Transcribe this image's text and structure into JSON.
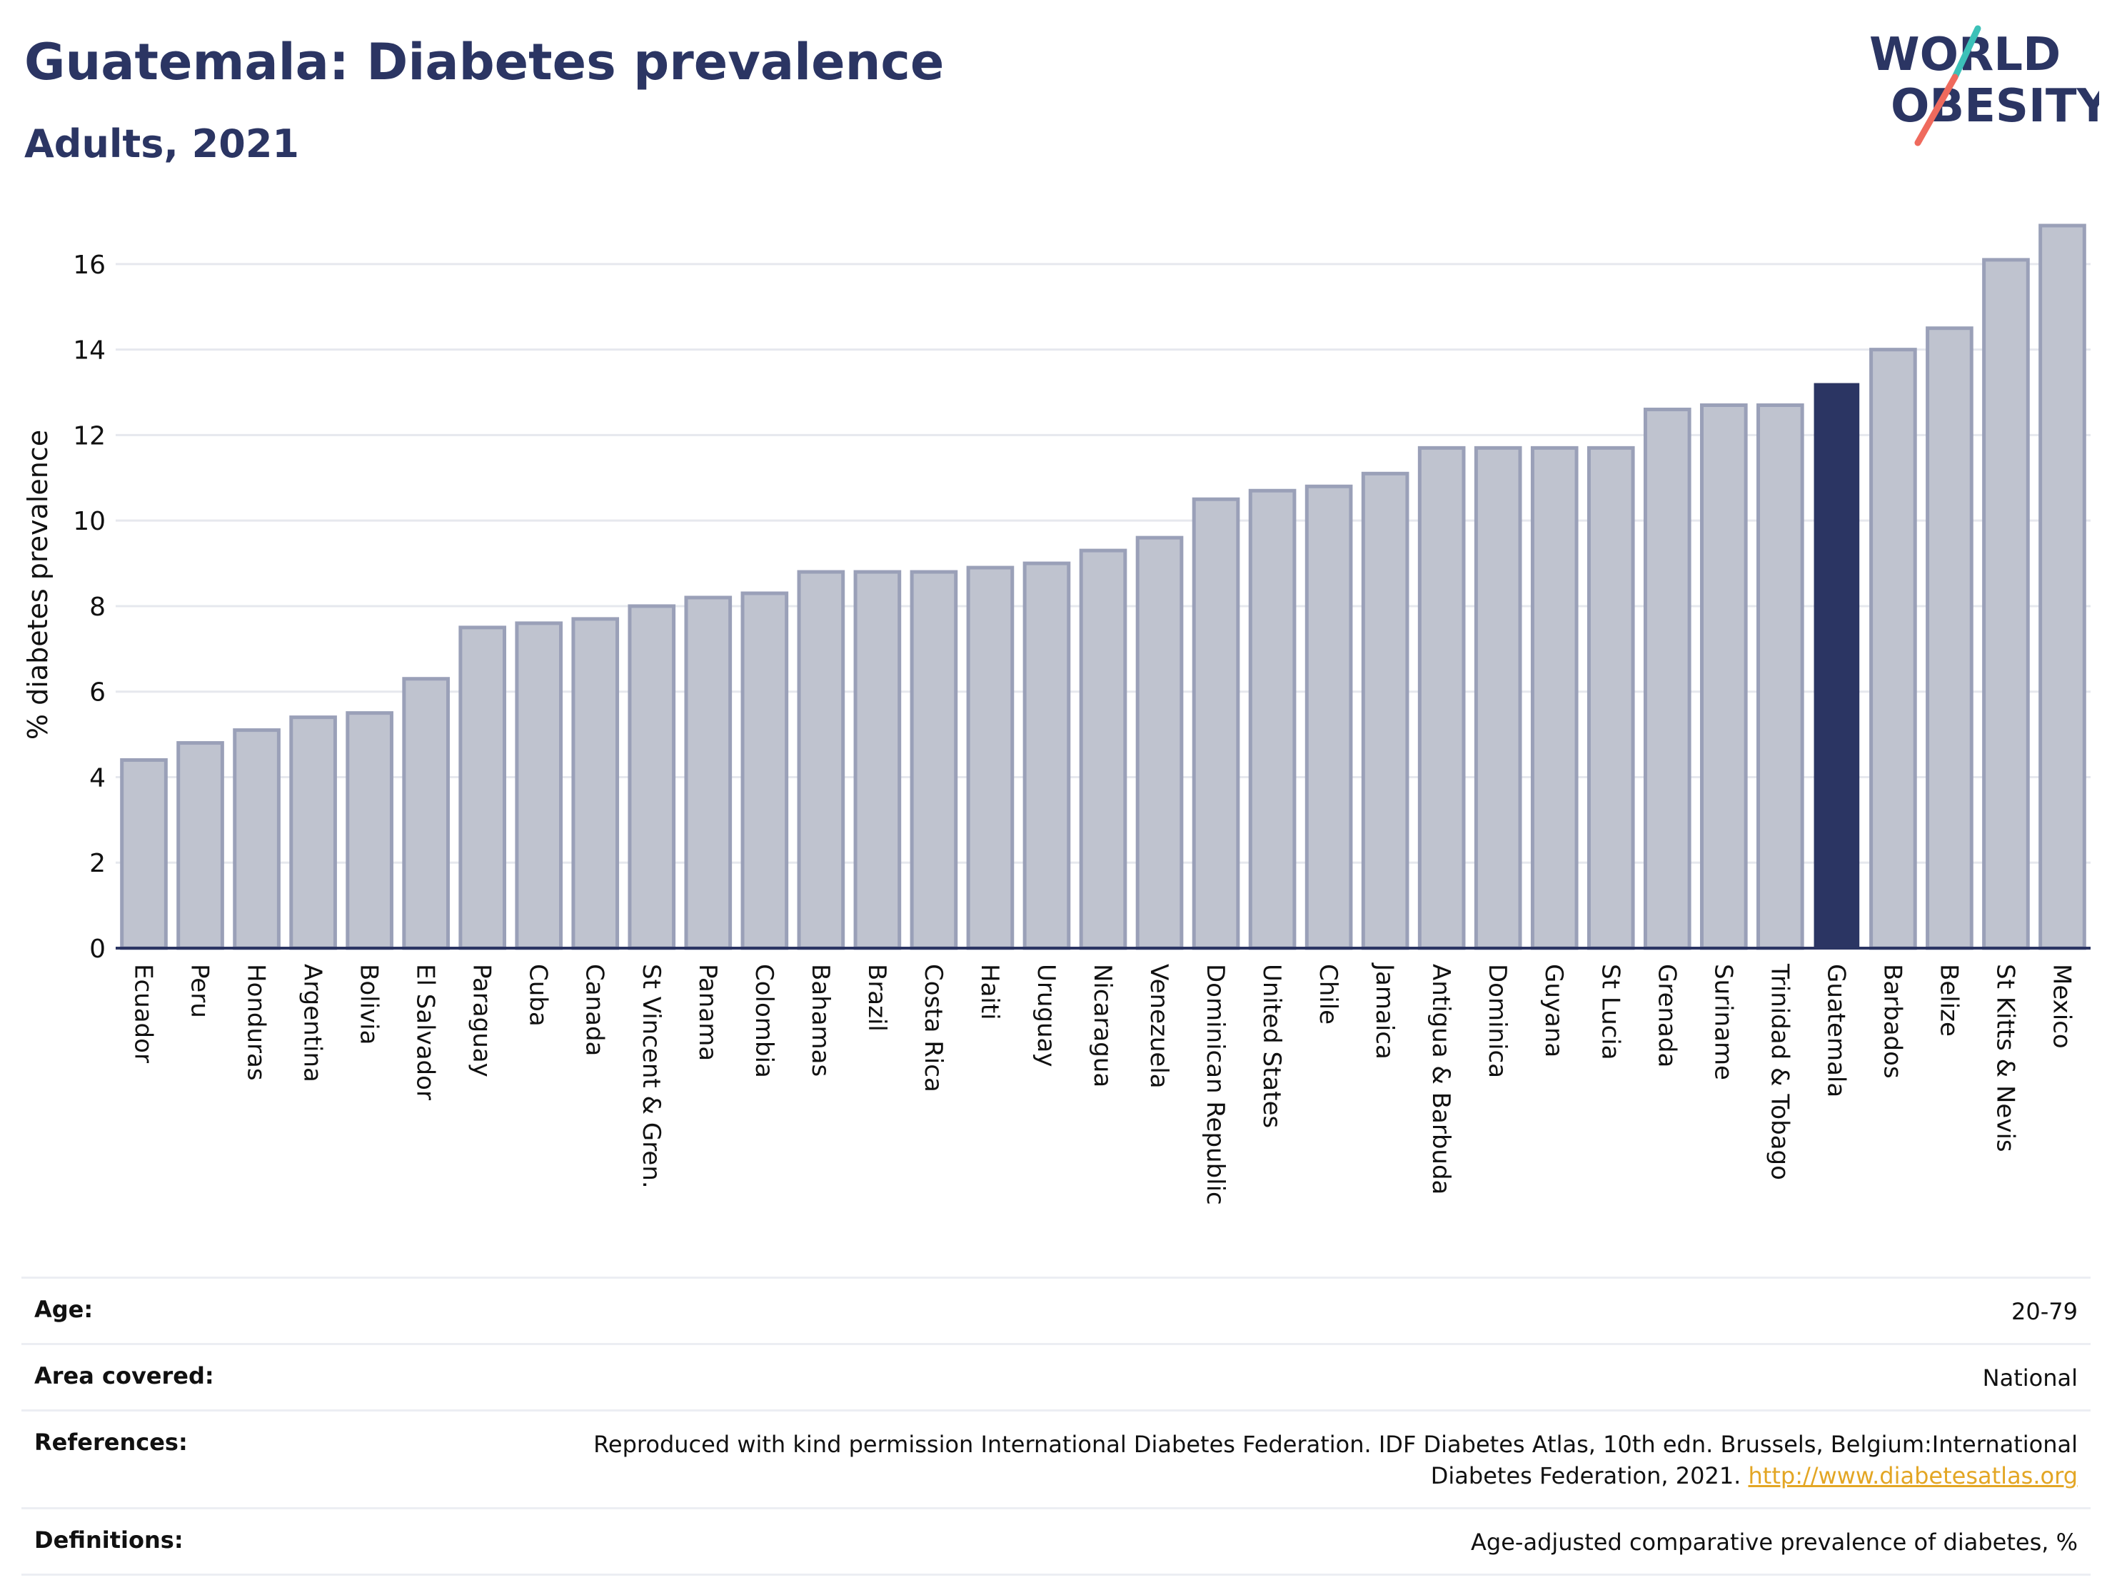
{
  "header": {
    "title": "Guatemala: Diabetes prevalence",
    "subtitle": "Adults, 2021"
  },
  "logo": {
    "line1": "WORLD",
    "line2": "OBESITY"
  },
  "colors": {
    "highlight_bar": "#2b3563",
    "other_bar_fill": "#bfc3cf",
    "other_bar_stroke": "#9aa0b8",
    "title": "#2b3563",
    "link": "#e3a624",
    "logo_accent_teal": "#3cc1b8",
    "logo_accent_coral": "#ef6a5d"
  },
  "chart_data": {
    "type": "bar",
    "title": "Guatemala: Diabetes prevalence",
    "subtitle": "Adults, 2021",
    "xlabel": "",
    "ylabel": "% diabetes prevalence",
    "ylim": [
      0,
      17
    ],
    "yticks": [
      0,
      2,
      4,
      6,
      8,
      10,
      12,
      14,
      16
    ],
    "grid": true,
    "highlight": "Guatemala",
    "categories": [
      "Ecuador",
      "Peru",
      "Honduras",
      "Argentina",
      "Bolivia",
      "El Salvador",
      "Paraguay",
      "Cuba",
      "Canada",
      "St Vincent & Gren.",
      "Panama",
      "Colombia",
      "Bahamas",
      "Brazil",
      "Costa Rica",
      "Haiti",
      "Uruguay",
      "Nicaragua",
      "Venezuela",
      "Dominican Republic",
      "United States",
      "Chile",
      "Jamaica",
      "Antigua & Barbuda",
      "Dominica",
      "Guyana",
      "St Lucia",
      "Grenada",
      "Suriname",
      "Trinidad & Tobago",
      "Guatemala",
      "Barbados",
      "Belize",
      "St Kitts & Nevis",
      "Mexico"
    ],
    "values": [
      4.4,
      4.8,
      5.1,
      5.4,
      5.5,
      6.3,
      7.5,
      7.6,
      7.7,
      8.0,
      8.2,
      8.3,
      8.8,
      8.8,
      8.8,
      8.9,
      9.0,
      9.3,
      9.6,
      10.5,
      10.7,
      10.8,
      11.1,
      11.7,
      11.7,
      11.7,
      11.7,
      12.6,
      12.7,
      12.7,
      13.2,
      14.0,
      14.5,
      16.1,
      16.9
    ]
  },
  "meta": {
    "age_label": "Age:",
    "age_value": "20-79",
    "area_label": "Area covered:",
    "area_value": "National",
    "references_label": "References:",
    "references_text": "Reproduced with kind permission International Diabetes Federation.  IDF Diabetes Atlas, 10th edn. Brussels, Belgium:International Diabetes Federation, 2021.",
    "references_link": "http://www.diabetesatlas.org",
    "definitions_label": "Definitions:",
    "definitions_value": "Age-adjusted comparative prevalence of diabetes, %"
  }
}
